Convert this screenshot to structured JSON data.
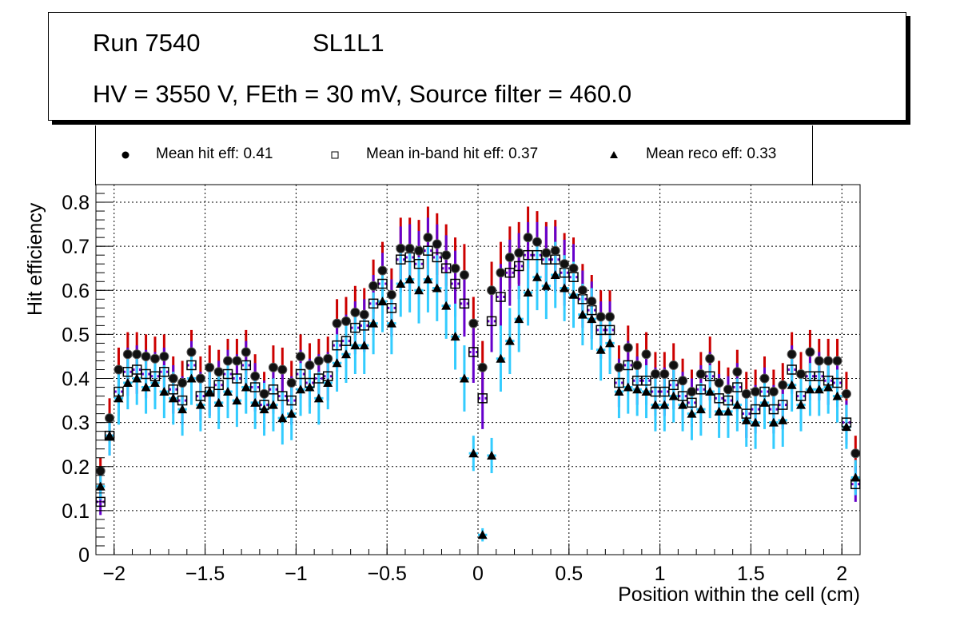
{
  "title": {
    "run": "Run 7540",
    "layer": "SL1L1",
    "conditions": "HV = 3550 V, FEth = 30 mV, Source filter = 460.0"
  },
  "colors": {
    "hit_err": "#cc0000",
    "band_err": "#6600cc",
    "reco_err": "#33ccff",
    "marker": "#000000"
  },
  "chart_data": {
    "type": "scatter",
    "title": "Run 7540 SL1L1 — HV = 3550 V, FEth = 30 mV, Source filter = 460.0",
    "xlabel": "Position within the cell (cm)",
    "ylabel": "Hit efficiency",
    "xlim": [
      -2.1,
      2.1
    ],
    "ylim": [
      0,
      0.84
    ],
    "grid": true,
    "legend_position": "top",
    "xticks": [
      -2,
      -1.5,
      -1,
      -0.5,
      0,
      0.5,
      1,
      1.5,
      2
    ],
    "xtick_labels": [
      "−2",
      "−1.5",
      "−1",
      "−0.5",
      "0",
      "0.5",
      "1",
      "1.5",
      "2"
    ],
    "yticks": [
      0,
      0.1,
      0.2,
      0.3,
      0.4,
      0.5,
      0.6,
      0.7,
      0.8
    ],
    "ytick_labels": [
      "0",
      "0.1",
      "0.2",
      "0.3",
      "0.4",
      "0.5",
      "0.6",
      "0.7",
      "0.8"
    ],
    "bin_width": 0.05,
    "x_first_center": -2.075,
    "series": [
      {
        "name": "Mean hit  eff: 0.41",
        "marker": "circle",
        "values": [
          0.19,
          0.31,
          0.42,
          0.455,
          0.455,
          0.45,
          0.445,
          0.45,
          0.4,
          0.39,
          0.46,
          0.4,
          0.425,
          0.415,
          0.44,
          0.44,
          0.46,
          0.405,
          0.365,
          0.425,
          0.42,
          0.39,
          0.45,
          0.43,
          0.44,
          0.445,
          0.525,
          0.53,
          0.55,
          0.545,
          0.61,
          0.645,
          0.59,
          0.695,
          0.695,
          0.69,
          0.72,
          0.705,
          0.68,
          0.65,
          0.635,
          0.525,
          0.425,
          0.6,
          0.64,
          0.675,
          0.685,
          0.72,
          0.71,
          0.685,
          0.69,
          0.66,
          0.65,
          0.6,
          0.575,
          0.54,
          0.54,
          0.425,
          0.47,
          0.43,
          0.455,
          0.41,
          0.41,
          0.43,
          0.395,
          0.37,
          0.41,
          0.445,
          0.39,
          0.375,
          0.415,
          0.365,
          0.37,
          0.4,
          0.37,
          0.385,
          0.455,
          0.41,
          0.46,
          0.44,
          0.44,
          0.44,
          0.365,
          0.23
        ],
        "errors": [
          0.03,
          0.045,
          0.05,
          0.05,
          0.05,
          0.05,
          0.05,
          0.05,
          0.05,
          0.05,
          0.05,
          0.05,
          0.05,
          0.05,
          0.05,
          0.05,
          0.05,
          0.05,
          0.05,
          0.05,
          0.05,
          0.05,
          0.05,
          0.05,
          0.05,
          0.05,
          0.055,
          0.055,
          0.06,
          0.06,
          0.06,
          0.065,
          0.06,
          0.07,
          0.07,
          0.07,
          0.07,
          0.07,
          0.07,
          0.07,
          0.07,
          0.06,
          0.06,
          0.065,
          0.07,
          0.07,
          0.07,
          0.07,
          0.07,
          0.07,
          0.07,
          0.07,
          0.07,
          0.06,
          0.06,
          0.06,
          0.06,
          0.05,
          0.05,
          0.05,
          0.05,
          0.05,
          0.05,
          0.05,
          0.05,
          0.05,
          0.05,
          0.05,
          0.05,
          0.05,
          0.05,
          0.05,
          0.05,
          0.05,
          0.05,
          0.05,
          0.05,
          0.05,
          0.05,
          0.05,
          0.05,
          0.05,
          0.05,
          0.04
        ]
      },
      {
        "name": "Mean in-band hit eff: 0.37",
        "marker": "open-square",
        "values": [
          0.12,
          0.27,
          0.37,
          0.415,
          0.42,
          0.41,
          0.405,
          0.415,
          0.375,
          0.35,
          0.43,
          0.36,
          0.37,
          0.385,
          0.41,
          0.4,
          0.43,
          0.38,
          0.34,
          0.375,
          0.36,
          0.35,
          0.41,
          0.39,
          0.4,
          0.405,
          0.475,
          0.485,
          0.515,
          0.52,
          0.57,
          0.615,
          0.56,
          0.67,
          0.675,
          0.66,
          0.69,
          0.675,
          0.65,
          0.615,
          0.57,
          0.46,
          0.355,
          0.53,
          0.585,
          0.64,
          0.655,
          0.68,
          0.68,
          0.67,
          0.67,
          0.64,
          0.63,
          0.58,
          0.555,
          0.51,
          0.51,
          0.39,
          0.43,
          0.395,
          0.395,
          0.37,
          0.37,
          0.385,
          0.36,
          0.345,
          0.375,
          0.405,
          0.355,
          0.35,
          0.38,
          0.32,
          0.33,
          0.37,
          0.33,
          0.34,
          0.42,
          0.36,
          0.405,
          0.405,
          0.395,
          0.39,
          0.3,
          0.16
        ],
        "errors": [
          0.03,
          0.045,
          0.055,
          0.055,
          0.055,
          0.055,
          0.055,
          0.055,
          0.055,
          0.055,
          0.055,
          0.055,
          0.055,
          0.055,
          0.055,
          0.055,
          0.055,
          0.055,
          0.055,
          0.055,
          0.055,
          0.055,
          0.055,
          0.055,
          0.055,
          0.055,
          0.06,
          0.06,
          0.06,
          0.06,
          0.065,
          0.07,
          0.065,
          0.075,
          0.075,
          0.075,
          0.075,
          0.075,
          0.075,
          0.075,
          0.075,
          0.07,
          0.07,
          0.07,
          0.075,
          0.075,
          0.075,
          0.075,
          0.075,
          0.075,
          0.075,
          0.075,
          0.075,
          0.065,
          0.065,
          0.065,
          0.065,
          0.055,
          0.055,
          0.055,
          0.055,
          0.055,
          0.055,
          0.055,
          0.055,
          0.055,
          0.055,
          0.055,
          0.055,
          0.055,
          0.055,
          0.055,
          0.055,
          0.055,
          0.055,
          0.055,
          0.055,
          0.055,
          0.055,
          0.055,
          0.055,
          0.055,
          0.05,
          0.04
        ]
      },
      {
        "name": "Mean reco eff: 0.33",
        "marker": "triangle",
        "values": [
          0.155,
          0.27,
          0.355,
          0.39,
          0.4,
          0.38,
          0.39,
          0.37,
          0.355,
          0.33,
          0.4,
          0.34,
          0.37,
          0.345,
          0.37,
          0.35,
          0.38,
          0.345,
          0.33,
          0.34,
          0.31,
          0.32,
          0.375,
          0.38,
          0.355,
          0.39,
          0.435,
          0.455,
          0.475,
          0.475,
          0.525,
          0.575,
          0.525,
          0.615,
          0.625,
          0.6,
          0.625,
          0.605,
          0.565,
          0.495,
          0.4,
          0.23,
          0.045,
          0.225,
          0.445,
          0.485,
          0.535,
          0.595,
          0.63,
          0.61,
          0.635,
          0.605,
          0.59,
          0.545,
          0.535,
          0.465,
          0.48,
          0.37,
          0.38,
          0.375,
          0.37,
          0.34,
          0.34,
          0.36,
          0.34,
          0.32,
          0.33,
          0.37,
          0.325,
          0.325,
          0.34,
          0.305,
          0.3,
          0.345,
          0.3,
          0.305,
          0.385,
          0.34,
          0.375,
          0.375,
          0.38,
          0.36,
          0.29,
          0.175
        ],
        "errors": [
          0.03,
          0.045,
          0.06,
          0.06,
          0.06,
          0.06,
          0.06,
          0.06,
          0.06,
          0.06,
          0.06,
          0.06,
          0.06,
          0.06,
          0.06,
          0.06,
          0.06,
          0.06,
          0.06,
          0.06,
          0.06,
          0.06,
          0.06,
          0.06,
          0.06,
          0.06,
          0.065,
          0.065,
          0.065,
          0.065,
          0.07,
          0.07,
          0.07,
          0.075,
          0.075,
          0.075,
          0.075,
          0.075,
          0.075,
          0.075,
          0.075,
          0.04,
          0.015,
          0.04,
          0.075,
          0.075,
          0.075,
          0.075,
          0.075,
          0.075,
          0.075,
          0.075,
          0.075,
          0.07,
          0.07,
          0.07,
          0.07,
          0.06,
          0.06,
          0.06,
          0.06,
          0.06,
          0.06,
          0.06,
          0.06,
          0.06,
          0.06,
          0.06,
          0.06,
          0.06,
          0.06,
          0.06,
          0.06,
          0.06,
          0.06,
          0.06,
          0.06,
          0.06,
          0.06,
          0.06,
          0.06,
          0.06,
          0.05,
          0.04
        ]
      }
    ]
  }
}
